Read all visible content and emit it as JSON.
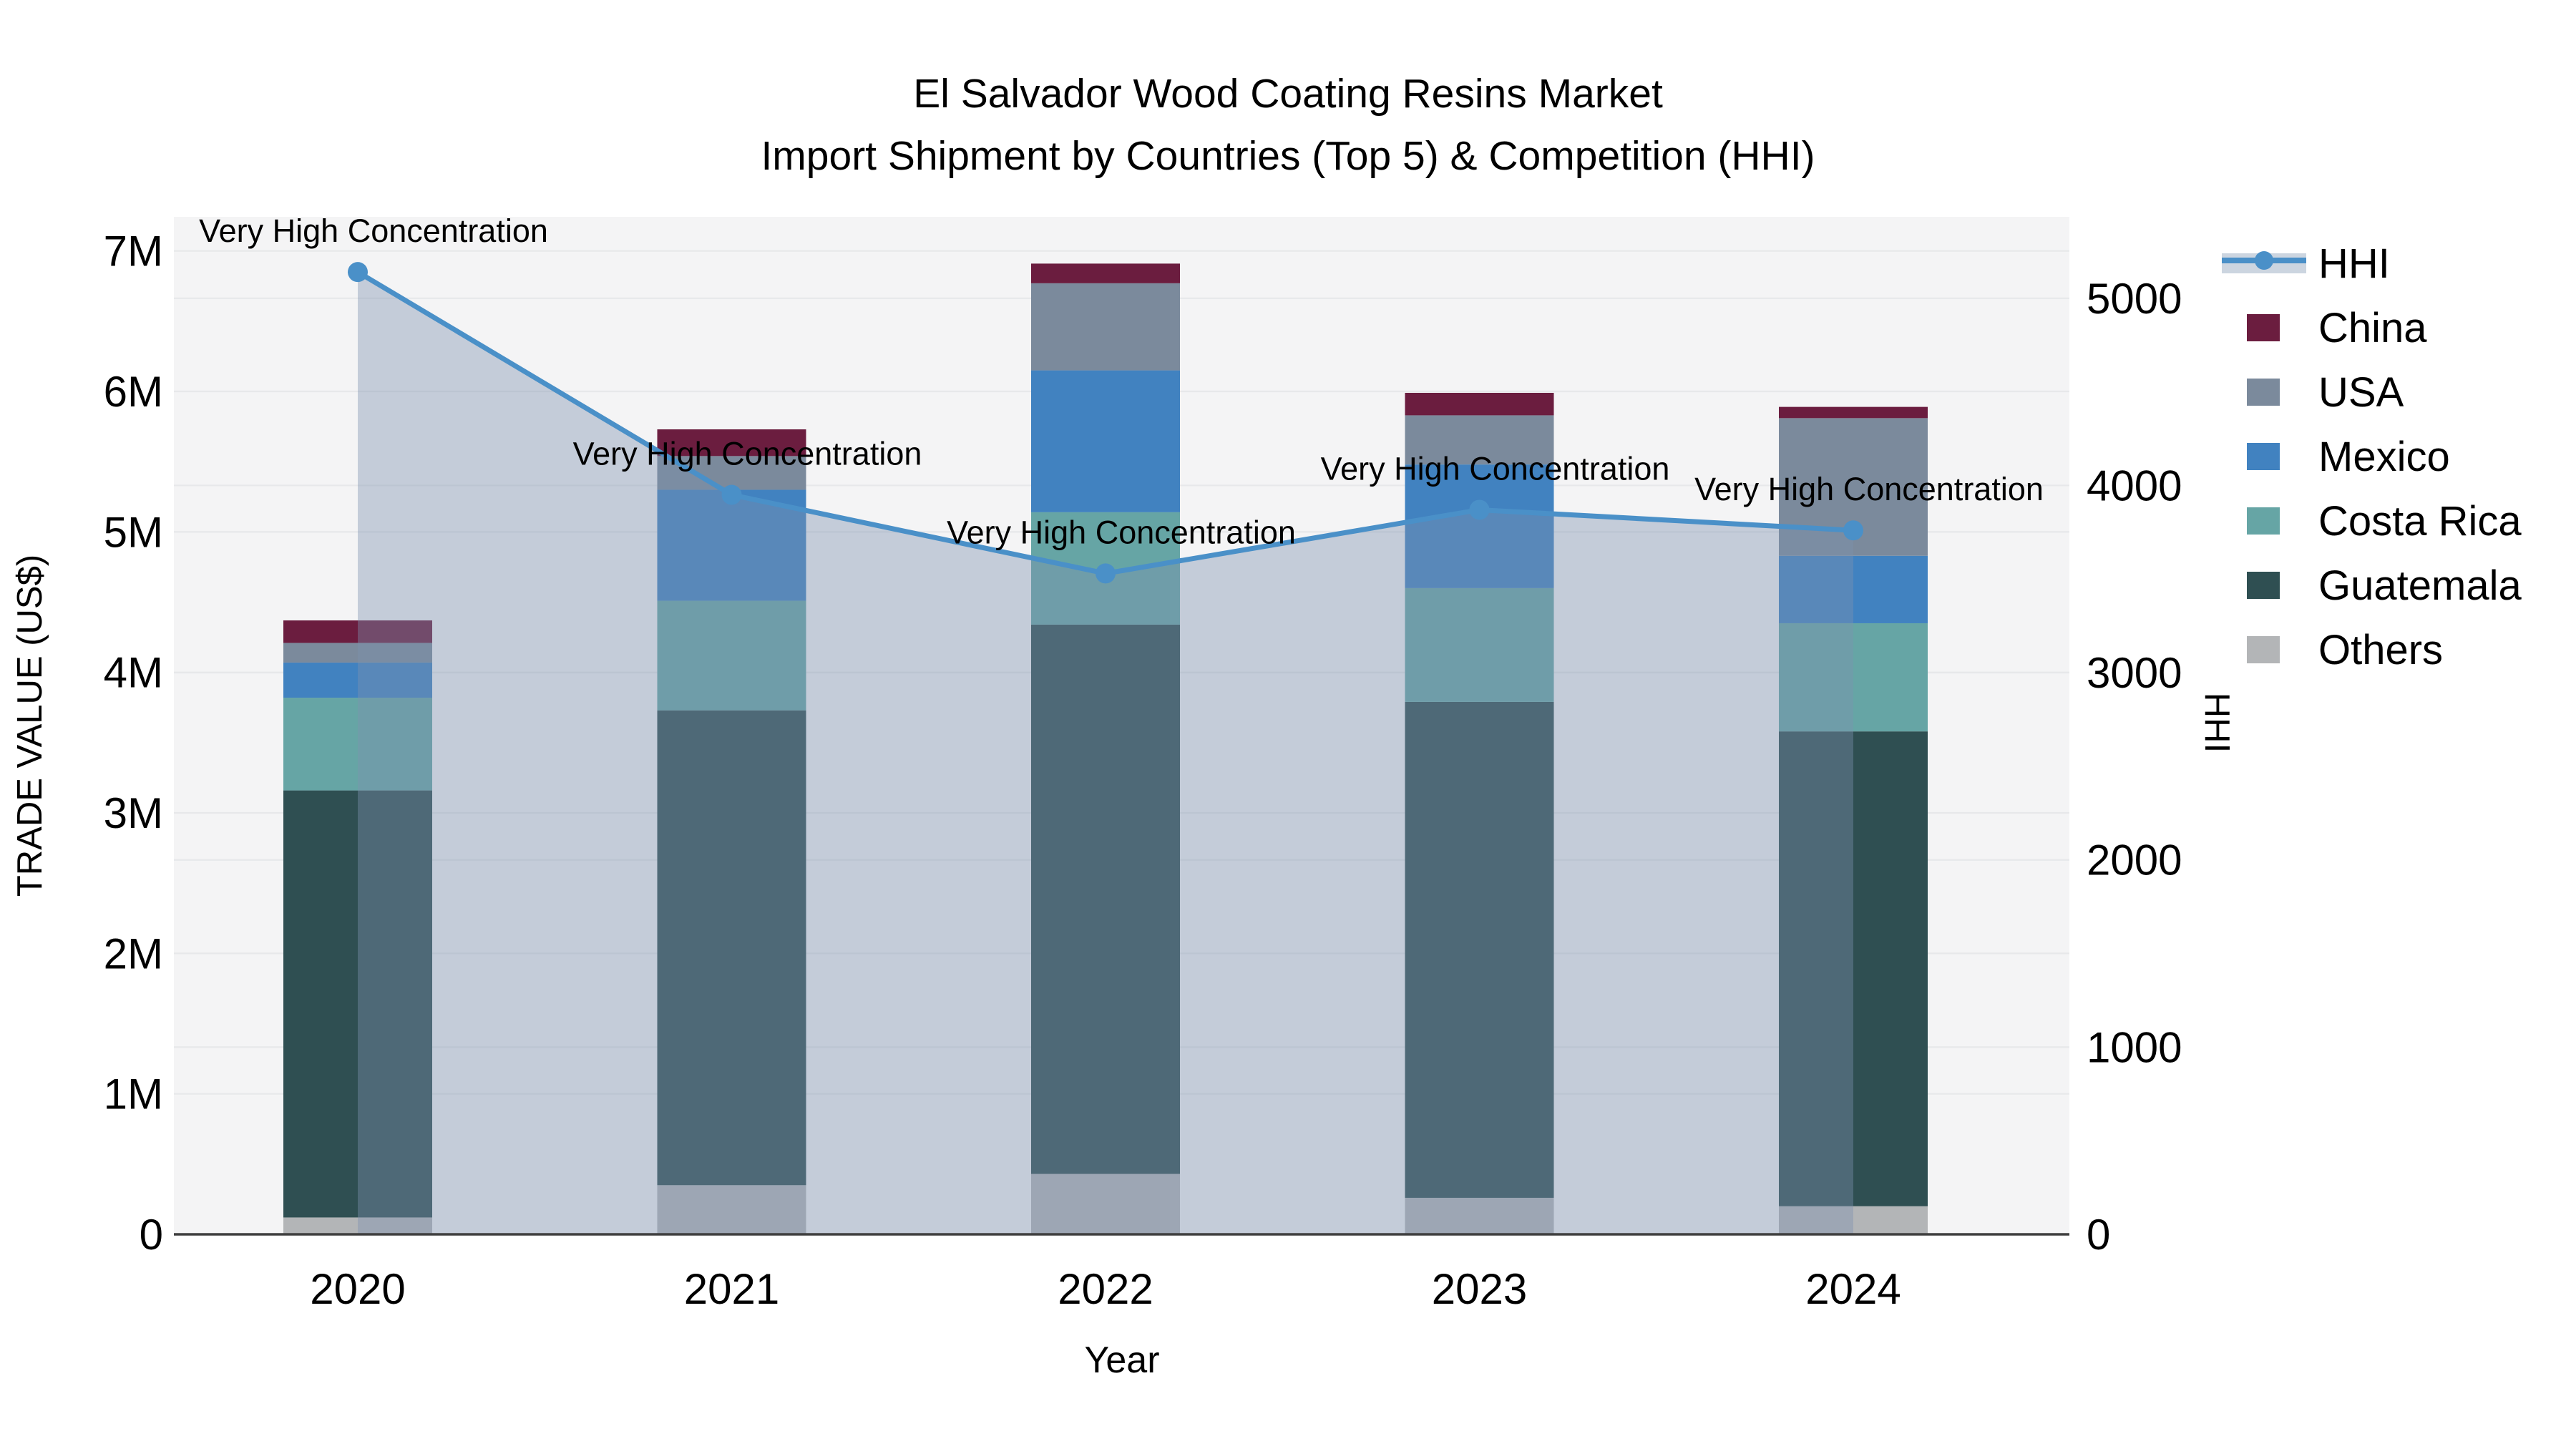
{
  "title": {
    "line1": "El Salvador Wood Coating Resins Market",
    "line2": "Import Shipment by Countries (Top 5) & Competition (HHI)"
  },
  "chart_data": {
    "type": "stacked-bar+line",
    "categories": [
      "2020",
      "2021",
      "2022",
      "2023",
      "2024"
    ],
    "bar_unit": "millions USD",
    "bar_series": [
      {
        "name": "Others",
        "color": "#b3b5b7",
        "values": [
          0.12,
          0.35,
          0.43,
          0.26,
          0.2
        ]
      },
      {
        "name": "Guatemala",
        "color": "#2f4f52",
        "values": [
          3.04,
          3.38,
          3.91,
          3.53,
          3.38
        ]
      },
      {
        "name": "Costa Rica",
        "color": "#66a5a5",
        "values": [
          0.66,
          0.78,
          0.8,
          0.81,
          0.77
        ]
      },
      {
        "name": "Mexico",
        "color": "#4182c0",
        "values": [
          0.25,
          0.79,
          1.01,
          0.88,
          0.48
        ]
      },
      {
        "name": "USA",
        "color": "#7b8a9c",
        "values": [
          0.14,
          0.24,
          0.62,
          0.35,
          0.98
        ]
      },
      {
        "name": "China",
        "color": "#6b1d3f",
        "values": [
          0.16,
          0.19,
          0.14,
          0.16,
          0.08
        ]
      }
    ],
    "bar_totals": [
      4.37,
      5.73,
      6.91,
      5.99,
      5.89
    ],
    "line_series": {
      "name": "HHI",
      "color": "#4a90c8",
      "fill": "rgba(125,145,175,0.40)",
      "values": [
        5140,
        3950,
        3530,
        3870,
        3760
      ]
    },
    "annotation_text": "Very High Concentration",
    "x_axis": {
      "label": "Year"
    },
    "left_axis": {
      "label": "TRADE VALUE (US$)",
      "tick_labels": [
        "0",
        "1M",
        "2M",
        "3M",
        "4M",
        "5M",
        "6M",
        "7M"
      ],
      "tick_values": [
        0,
        1,
        2,
        3,
        4,
        5,
        6,
        7
      ],
      "max": 7.243
    },
    "right_axis": {
      "label": "HHI",
      "tick_labels": [
        "0",
        "1000",
        "2000",
        "3000",
        "4000",
        "5000"
      ],
      "tick_values": [
        0,
        1000,
        2000,
        3000,
        4000,
        5000
      ],
      "max": 5435
    },
    "legend_order": [
      "HHI",
      "China",
      "USA",
      "Mexico",
      "Costa Rica",
      "Guatemala",
      "Others"
    ],
    "grid": true,
    "legend_position": "right"
  },
  "colors": {
    "plot_bg": "#f4f4f5",
    "grid": "#e7e8ea",
    "axis_line": "#3f3f3f",
    "hhi_band_swatch": "#ccd5e0"
  }
}
